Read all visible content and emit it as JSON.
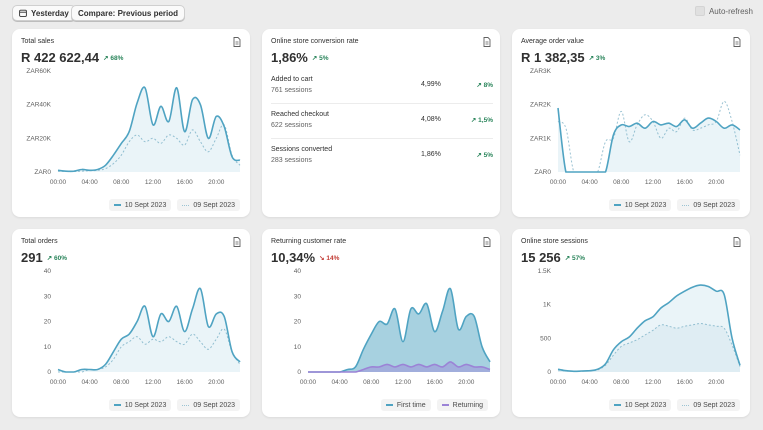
{
  "toolbar": {
    "date_label": "Yesterday",
    "compare_label": "Compare: Previous period",
    "autorefresh_label": "Auto-refresh"
  },
  "colors": {
    "primary": "#4fa3c2",
    "comparison": "#9bc3d3",
    "returning": "#9b83d6",
    "up": "#29845a",
    "down": "#c23c35"
  },
  "cards": {
    "total_sales": {
      "title": "Total sales",
      "value": "R 422 622,44",
      "delta": "68%",
      "delta_dir": "up",
      "legend_current": "10 Sept 2023",
      "legend_previous": "09 Sept 2023"
    },
    "conversion": {
      "title": "Online store conversion rate",
      "value": "1,86%",
      "delta": "5%",
      "delta_dir": "up",
      "rows": [
        {
          "label": "Added to cart",
          "sessions": "761 sessions",
          "pct": "4,99%",
          "delta": "8%",
          "dir": "up"
        },
        {
          "label": "Reached checkout",
          "sessions": "622 sessions",
          "pct": "4,08%",
          "delta": "1,5%",
          "dir": "up"
        },
        {
          "label": "Sessions converted",
          "sessions": "283 sessions",
          "pct": "1,86%",
          "delta": "5%",
          "dir": "up"
        }
      ]
    },
    "aov": {
      "title": "Average order value",
      "value": "R 1 382,35",
      "delta": "3%",
      "delta_dir": "up",
      "legend_current": "10 Sept 2023",
      "legend_previous": "09 Sept 2023"
    },
    "total_orders": {
      "title": "Total orders",
      "value": "291",
      "delta": "60%",
      "delta_dir": "up",
      "legend_current": "10 Sept 2023",
      "legend_previous": "09 Sept 2023"
    },
    "returning": {
      "title": "Returning customer rate",
      "value": "10,34%",
      "delta": "14%",
      "delta_dir": "down",
      "legend_first": "First time",
      "legend_returning": "Returning"
    },
    "sessions": {
      "title": "Online store sessions",
      "value": "15 256",
      "delta": "57%",
      "delta_dir": "up",
      "legend_current": "10 Sept 2023",
      "legend_previous": "09 Sept 2023"
    }
  },
  "chart_data": [
    {
      "id": "total_sales",
      "type": "line",
      "x": [
        0,
        1,
        2,
        3,
        4,
        5,
        6,
        7,
        8,
        9,
        10,
        11,
        12,
        13,
        14,
        15,
        16,
        17,
        18,
        19,
        20,
        21,
        22,
        23
      ],
      "xticks": [
        "00:00",
        "04:00",
        "08:00",
        "12:00",
        "16:00",
        "20:00"
      ],
      "yticks": [
        "ZAR0",
        "ZAR20K",
        "ZAR40K",
        "ZAR60K"
      ],
      "ylim": [
        0,
        60000
      ],
      "series": [
        {
          "name": "10 Sept 2023",
          "style": "solid",
          "values": [
            1000,
            500,
            500,
            1500,
            1000,
            1500,
            4000,
            10000,
            17000,
            24000,
            41000,
            50000,
            28000,
            39000,
            30000,
            50000,
            24000,
            43000,
            40000,
            20000,
            33000,
            27000,
            9000,
            7000
          ]
        },
        {
          "name": "09 Sept 2023",
          "style": "dashed",
          "values": [
            500,
            300,
            300,
            500,
            800,
            1000,
            2000,
            5000,
            10000,
            18000,
            22000,
            18000,
            20000,
            17000,
            22000,
            20000,
            16000,
            25000,
            18000,
            12000,
            20000,
            28000,
            10000,
            4000
          ]
        }
      ]
    },
    {
      "id": "aov",
      "type": "line",
      "x": [
        0,
        1,
        2,
        3,
        4,
        5,
        6,
        7,
        8,
        9,
        10,
        11,
        12,
        13,
        14,
        15,
        16,
        17,
        18,
        19,
        20,
        21,
        22,
        23
      ],
      "xticks": [
        "00:00",
        "04:00",
        "08:00",
        "12:00",
        "16:00",
        "20:00"
      ],
      "yticks": [
        "ZAR0",
        "ZAR1K",
        "ZAR2K",
        "ZAR3K"
      ],
      "ylim": [
        0,
        3000
      ],
      "series": [
        {
          "name": "10 Sept 2023",
          "style": "solid",
          "values": [
            1900,
            0,
            0,
            0,
            0,
            0,
            0,
            1100,
            1400,
            1350,
            1450,
            1300,
            1500,
            1400,
            1450,
            1350,
            1550,
            1300,
            1450,
            1600,
            1500,
            1300,
            1400,
            1250
          ]
        },
        {
          "name": "09 Sept 2023",
          "style": "dashed",
          "values": [
            1500,
            1300,
            0,
            0,
            0,
            0,
            900,
            1000,
            1800,
            900,
            1400,
            1700,
            1500,
            1000,
            1300,
            1200,
            1600,
            1250,
            1300,
            1400,
            1500,
            2100,
            1500,
            500
          ]
        }
      ]
    },
    {
      "id": "total_orders",
      "type": "line",
      "x": [
        0,
        1,
        2,
        3,
        4,
        5,
        6,
        7,
        8,
        9,
        10,
        11,
        12,
        13,
        14,
        15,
        16,
        17,
        18,
        19,
        20,
        21,
        22,
        23
      ],
      "xticks": [
        "00:00",
        "04:00",
        "08:00",
        "12:00",
        "16:00",
        "20:00"
      ],
      "yticks": [
        "0",
        "10",
        "20",
        "30",
        "40"
      ],
      "ylim": [
        0,
        40
      ],
      "series": [
        {
          "name": "10 Sept 2023",
          "style": "solid",
          "values": [
            1,
            0,
            0,
            1,
            1,
            1,
            3,
            8,
            13,
            15,
            20,
            26,
            14,
            23,
            20,
            26,
            16,
            25,
            33,
            18,
            23,
            22,
            8,
            4
          ]
        },
        {
          "name": "09 Sept 2023",
          "style": "dashed",
          "values": [
            0,
            0,
            0,
            0,
            1,
            1,
            2,
            5,
            10,
            12,
            14,
            11,
            13,
            12,
            14,
            12,
            11,
            15,
            12,
            9,
            13,
            17,
            8,
            3
          ]
        }
      ]
    },
    {
      "id": "returning",
      "type": "area",
      "x": [
        0,
        1,
        2,
        3,
        4,
        5,
        6,
        7,
        8,
        9,
        10,
        11,
        12,
        13,
        14,
        15,
        16,
        17,
        18,
        19,
        20,
        21,
        22,
        23
      ],
      "xticks": [
        "00:00",
        "04:00",
        "08:00",
        "12:00",
        "16:00",
        "20:00"
      ],
      "yticks": [
        "0",
        "10",
        "20",
        "30",
        "40"
      ],
      "ylim": [
        0,
        40
      ],
      "series": [
        {
          "name": "First time",
          "style": "solid",
          "values": [
            0,
            0,
            0,
            0,
            0,
            1,
            2,
            9,
            15,
            20,
            19,
            25,
            12,
            25,
            23,
            27,
            16,
            24,
            33,
            17,
            22,
            22,
            10,
            4
          ]
        },
        {
          "name": "Returning",
          "style": "solid",
          "values": [
            0,
            0,
            0,
            0,
            0,
            0,
            0,
            1,
            2,
            2,
            3,
            2,
            3,
            2,
            3,
            2,
            3,
            2,
            4,
            2,
            3,
            2,
            2,
            1
          ]
        }
      ]
    },
    {
      "id": "sessions",
      "type": "area",
      "x": [
        0,
        1,
        2,
        3,
        4,
        5,
        6,
        7,
        8,
        9,
        10,
        11,
        12,
        13,
        14,
        15,
        16,
        17,
        18,
        19,
        20,
        21,
        22,
        23
      ],
      "xticks": [
        "00:00",
        "04:00",
        "08:00",
        "12:00",
        "16:00",
        "20:00"
      ],
      "yticks": [
        "0",
        "500",
        "1K",
        "1.5K"
      ],
      "ylim": [
        0,
        1500
      ],
      "series": [
        {
          "name": "10 Sept 2023",
          "style": "solid",
          "values": [
            40,
            20,
            10,
            15,
            20,
            40,
            120,
            330,
            450,
            520,
            650,
            760,
            820,
            950,
            1030,
            1130,
            1200,
            1260,
            1290,
            1270,
            1200,
            1150,
            500,
            100
          ]
        },
        {
          "name": "09 Sept 2023",
          "style": "dashed",
          "values": [
            30,
            15,
            10,
            10,
            20,
            30,
            100,
            250,
            380,
            430,
            480,
            550,
            620,
            700,
            680,
            650,
            680,
            700,
            720,
            700,
            680,
            650,
            400,
            80
          ]
        }
      ]
    }
  ]
}
